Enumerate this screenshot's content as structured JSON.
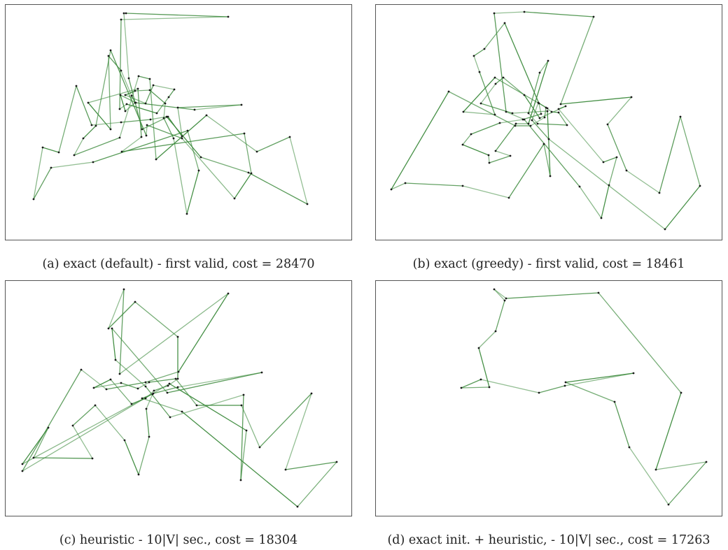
{
  "colors": {
    "edge": "#3c8a3c",
    "node": "#1a1a1a",
    "frame": "#555555"
  },
  "panels": [
    {
      "caption": "(a) exact (default) - first valid, cost = 28470",
      "tour": [
        [
          169,
          12
        ],
        [
          176,
          105
        ],
        [
          195,
          178
        ],
        [
          232,
          160
        ],
        [
          252,
          188
        ],
        [
          246,
          147
        ],
        [
          337,
          143
        ],
        [
          270,
          150
        ],
        [
          186,
          140
        ],
        [
          164,
          129
        ],
        [
          171,
          152
        ],
        [
          185,
          140
        ],
        [
          180,
          130
        ],
        [
          165,
          94
        ],
        [
          147,
          73
        ],
        [
          150,
          178
        ],
        [
          118,
          140
        ],
        [
          189,
          120
        ],
        [
          194,
          189
        ],
        [
          166,
          210
        ],
        [
          341,
          184
        ],
        [
          351,
          241
        ],
        [
          327,
          277
        ],
        [
          252,
          191
        ],
        [
          202,
          172
        ],
        [
          201,
          187
        ],
        [
          150,
          65
        ],
        [
          129,
          173
        ],
        [
          111,
          191
        ],
        [
          98,
          215
        ],
        [
          163,
          190
        ],
        [
          190,
          102
        ],
        [
          206,
          106
        ],
        [
          215,
          221
        ],
        [
          287,
          158
        ],
        [
          359,
          210
        ],
        [
          406,
          189
        ],
        [
          431,
          285
        ],
        [
          347,
          240
        ],
        [
          279,
          218
        ],
        [
          230,
          160
        ],
        [
          207,
          164
        ],
        [
          165,
          168
        ],
        [
          123,
          172
        ],
        [
          101,
          116
        ],
        [
          76,
          211
        ],
        [
          53,
          204
        ],
        [
          40,
          278
        ],
        [
          65,
          233
        ],
        [
          125,
          225
        ],
        [
          260,
          180
        ],
        [
          276,
          237
        ],
        [
          259,
          299
        ],
        [
          240,
          191
        ],
        [
          226,
          162
        ],
        [
          228,
          141
        ],
        [
          206,
          122
        ],
        [
          185,
          123
        ],
        [
          171,
          129
        ],
        [
          200,
          141
        ],
        [
          211,
          115
        ],
        [
          241,
          121
        ],
        [
          233,
          132
        ],
        [
          216,
          155
        ],
        [
          173,
          142
        ],
        [
          163,
          149
        ],
        [
          165,
          21
        ],
        [
          318,
          17
        ],
        [
          172,
          12
        ]
      ]
    },
    {
      "caption": "(b) exact (greedy) - first valid, cost = 18461",
      "tour": [
        [
          169,
          12
        ],
        [
          212,
          10
        ],
        [
          311,
          17
        ],
        [
          264,
          142
        ],
        [
          365,
          132
        ],
        [
          331,
          171
        ],
        [
          358,
          237
        ],
        [
          405,
          269
        ],
        [
          435,
          160
        ],
        [
          463,
          259
        ],
        [
          413,
          321
        ],
        [
          247,
          192
        ],
        [
          223,
          165
        ],
        [
          232,
          140
        ],
        [
          245,
          148
        ],
        [
          170,
          104
        ],
        [
          125,
          153
        ],
        [
          170,
          157
        ],
        [
          148,
          96
        ],
        [
          140,
          73
        ],
        [
          155,
          63
        ],
        [
          184,
          26
        ],
        [
          233,
          141
        ],
        [
          236,
          156
        ],
        [
          210,
          164
        ],
        [
          177,
          169
        ],
        [
          136,
          185
        ],
        [
          124,
          200
        ],
        [
          161,
          215
        ],
        [
          162,
          226
        ],
        [
          192,
          216
        ],
        [
          171,
          209
        ],
        [
          200,
          170
        ],
        [
          218,
          170
        ],
        [
          246,
          80
        ],
        [
          234,
          97
        ],
        [
          218,
          155
        ],
        [
          231,
          170
        ],
        [
          273,
          172
        ],
        [
          261,
          154
        ],
        [
          251,
          153
        ],
        [
          243,
          147
        ],
        [
          241,
          161
        ],
        [
          221,
          173
        ],
        [
          199,
          173
        ],
        [
          104,
          124
        ],
        [
          22,
          264
        ],
        [
          42,
          255
        ],
        [
          124,
          259
        ],
        [
          190,
          276
        ],
        [
          240,
          199
        ],
        [
          249,
          245
        ],
        [
          245,
          152
        ],
        [
          195,
          155
        ],
        [
          150,
          141
        ],
        [
          171,
          113
        ],
        [
          182,
          104
        ],
        [
          212,
          129
        ],
        [
          234,
          162
        ],
        [
          271,
          145
        ],
        [
          261,
          149
        ],
        [
          325,
          225
        ],
        [
          344,
          218
        ],
        [
          333,
          258
        ],
        [
          322,
          305
        ],
        [
          291,
          260
        ],
        [
          212,
          164
        ],
        [
          186,
          153
        ],
        [
          169,
          12
        ]
      ]
    },
    {
      "caption": "(c) heuristic - 10|V| sec., cost = 18304",
      "tour": [
        [
          169,
          12
        ],
        [
          147,
          68
        ],
        [
          185,
          30
        ],
        [
          246,
          80
        ],
        [
          246,
          140
        ],
        [
          232,
          150
        ],
        [
          212,
          157
        ],
        [
          200,
          168
        ],
        [
          180,
          176
        ],
        [
          150,
          141
        ],
        [
          126,
          153
        ],
        [
          165,
          146
        ],
        [
          189,
          154
        ],
        [
          205,
          145
        ],
        [
          243,
          140
        ],
        [
          273,
          178
        ],
        [
          337,
          178
        ],
        [
          363,
          238
        ],
        [
          437,
          161
        ],
        [
          400,
          270
        ],
        [
          473,
          259
        ],
        [
          417,
          323
        ],
        [
          252,
          187
        ],
        [
          195,
          168
        ],
        [
          210,
          162
        ],
        [
          201,
          183
        ],
        [
          205,
          223
        ],
        [
          190,
          277
        ],
        [
          170,
          228
        ],
        [
          128,
          178
        ],
        [
          96,
          207
        ],
        [
          124,
          254
        ],
        [
          40,
          253
        ],
        [
          61,
          210
        ],
        [
          24,
          262
        ],
        [
          211,
          161
        ],
        [
          246,
          152
        ],
        [
          366,
          131
        ],
        [
          231,
          160
        ],
        [
          152,
          68
        ],
        [
          157,
          113
        ],
        [
          200,
          151
        ],
        [
          235,
          195
        ],
        [
          340,
          163
        ],
        [
          336,
          285
        ],
        [
          344,
          214
        ],
        [
          234,
          147
        ],
        [
          24,
          272
        ],
        [
          108,
          127
        ],
        [
          144,
          155
        ],
        [
          200,
          145
        ],
        [
          247,
          130
        ],
        [
          318,
          18
        ],
        [
          163,
          133
        ],
        [
          169,
          12
        ]
      ]
    },
    {
      "caption": "(d) exact init. + heuristic, - 10|V| sec., cost = 17263",
      "tour": [
        [
          169,
          12
        ],
        [
          186,
          25
        ],
        [
          318,
          17
        ],
        [
          436,
          160
        ],
        [
          400,
          270
        ],
        [
          472,
          259
        ],
        [
          418,
          320
        ],
        [
          362,
          238
        ],
        [
          341,
          173
        ],
        [
          271,
          145
        ],
        [
          368,
          132
        ],
        [
          270,
          150
        ],
        [
          233,
          160
        ],
        [
          150,
          141
        ],
        [
          122,
          153
        ],
        [
          162,
          152
        ],
        [
          147,
          96
        ],
        [
          171,
          72
        ],
        [
          184,
          28
        ],
        [
          169,
          12
        ]
      ]
    }
  ]
}
